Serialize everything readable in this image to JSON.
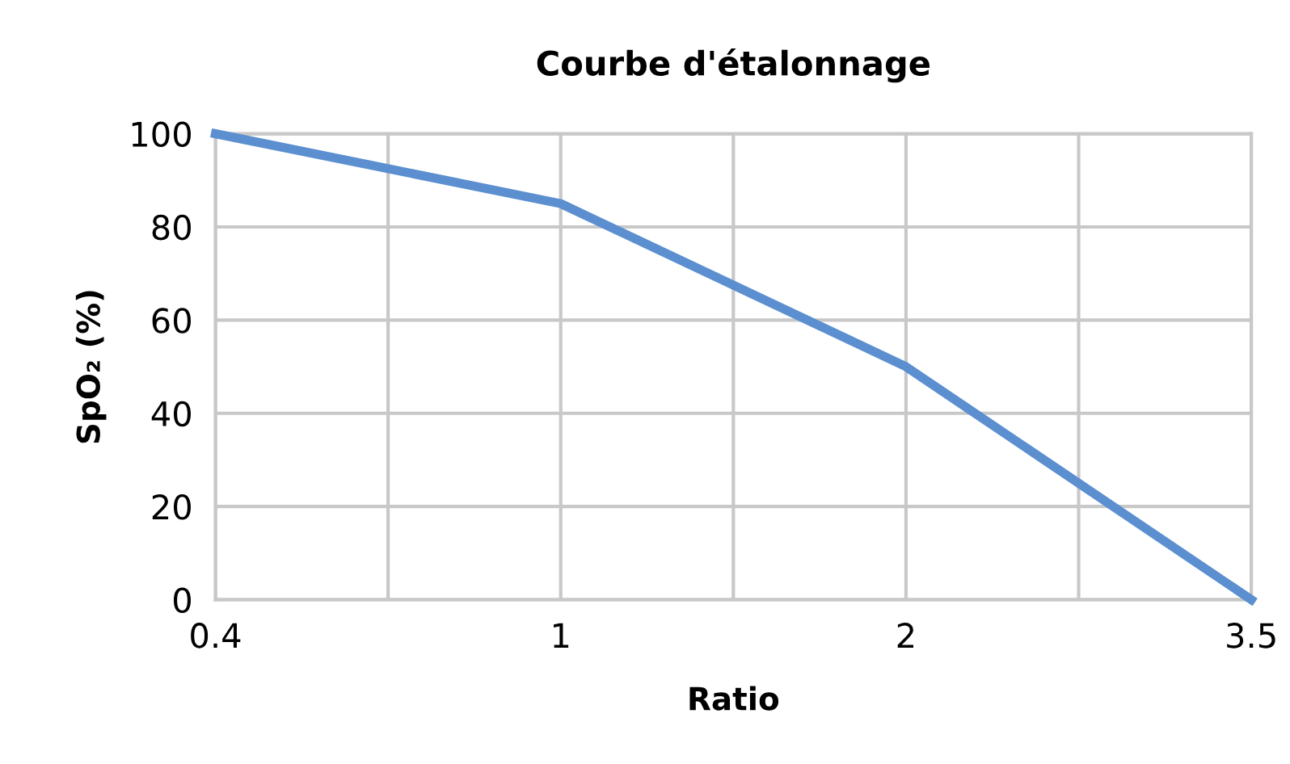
{
  "chart_data": {
    "type": "line",
    "title": "Courbe d'étalonnage",
    "xlabel": "Ratio",
    "ylabel": "SpO₂ (%)",
    "categories": [
      "0.4",
      "1",
      "2",
      "3.5"
    ],
    "series": [
      {
        "color": "#5b8fd0",
        "values": [
          100,
          85,
          50,
          0
        ]
      }
    ],
    "ylim": [
      0,
      100
    ],
    "yticks": [
      0,
      20,
      40,
      60,
      80,
      100
    ],
    "grid": true,
    "legend": false,
    "marker": "none",
    "line_style": "solid"
  }
}
